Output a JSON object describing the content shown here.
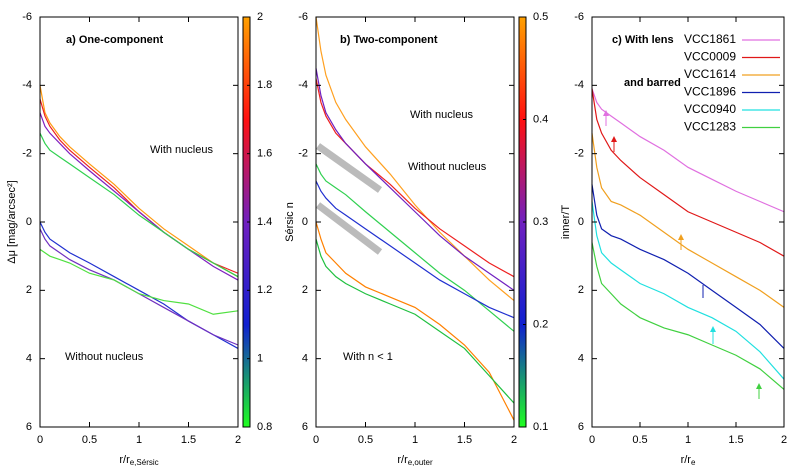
{
  "chart_data": [
    {
      "type": "line",
      "y_label": "Δμ [mag/arcsec²]",
      "x_label": {
        "text": "r/r",
        "sub": "e,Sérsic"
      },
      "annotations": [
        {
          "text": "a) One-component",
          "bold": true
        },
        {
          "text": "With nucleus",
          "bold": false
        },
        {
          "text": "Without nucleus",
          "bold": false
        }
      ],
      "x": [
        0,
        0.05,
        0.1,
        0.2,
        0.3,
        0.5,
        0.75,
        1,
        1.25,
        1.5,
        1.75,
        2
      ],
      "series": [
        {
          "color": "#ff9a10",
          "values": [
            -4.0,
            -3.2,
            -2.9,
            -2.5,
            -2.2,
            -1.7,
            -1.1,
            -0.4,
            0.2,
            0.7,
            1.2,
            1.6
          ]
        },
        {
          "color": "#ee2020",
          "values": [
            -3.6,
            -3.1,
            -2.8,
            -2.4,
            -2.1,
            -1.6,
            -1.0,
            -0.3,
            0.3,
            0.8,
            1.2,
            1.5
          ]
        },
        {
          "color": "#8020c0",
          "values": [
            -3.2,
            -2.8,
            -2.6,
            -2.3,
            -2.0,
            -1.5,
            -0.9,
            -0.3,
            0.3,
            0.8,
            1.3,
            1.7
          ]
        },
        {
          "color": "#30d050",
          "values": [
            -2.6,
            -2.3,
            -2.1,
            -1.9,
            -1.7,
            -1.3,
            -0.8,
            -0.2,
            0.3,
            0.8,
            1.2,
            1.6
          ]
        },
        {
          "color": "#2030d0",
          "values": [
            0.0,
            0.3,
            0.5,
            0.7,
            0.9,
            1.2,
            1.6,
            2.0,
            2.4,
            2.9,
            3.3,
            3.7
          ]
        },
        {
          "color": "#7030c0",
          "values": [
            0.2,
            0.5,
            0.7,
            0.9,
            1.1,
            1.4,
            1.7,
            2.1,
            2.5,
            2.9,
            3.3,
            3.6
          ]
        },
        {
          "color": "#50e040",
          "values": [
            0.8,
            0.9,
            1.0,
            1.1,
            1.2,
            1.5,
            1.7,
            2.1,
            2.3,
            2.4,
            2.7,
            2.6
          ]
        }
      ],
      "xlim": [
        0,
        2
      ],
      "xticks": [
        0,
        0.5,
        1,
        1.5,
        2
      ],
      "ylim": [
        -6,
        6
      ],
      "yticks": [
        -6,
        -4,
        -2,
        0,
        2,
        4,
        6
      ],
      "y_inverted": true,
      "colorbar": {
        "label": "Sérsic n",
        "lim": [
          0.8,
          2
        ],
        "ticks": [
          0.8,
          1,
          1.2,
          1.4,
          1.6,
          1.8,
          2
        ],
        "colors": [
          "#20ff20",
          "#1020d0",
          "#7020c0",
          "#ff1010",
          "#ffa000"
        ]
      }
    },
    {
      "type": "line",
      "x_label": {
        "text": "r/r",
        "sub": "e,outer"
      },
      "annotations": [
        {
          "text": "b) Two-component",
          "bold": true
        },
        {
          "text": "With nucleus",
          "bold": false
        },
        {
          "text": "Without nucleus",
          "bold": false
        },
        {
          "text": "With n < 1",
          "bold": false
        }
      ],
      "x": [
        0,
        0.05,
        0.1,
        0.2,
        0.3,
        0.5,
        0.75,
        1,
        1.25,
        1.5,
        1.75,
        2
      ],
      "series": [
        {
          "color": "#ffa020",
          "values": [
            -6.0,
            -5.0,
            -4.3,
            -3.5,
            -3.0,
            -2.2,
            -1.4,
            -0.5,
            0.3,
            1.0,
            1.7,
            2.3
          ]
        },
        {
          "color": "#ee2020",
          "values": [
            -4.2,
            -3.5,
            -3.1,
            -2.6,
            -2.3,
            -1.7,
            -1.1,
            -0.4,
            0.2,
            0.7,
            1.2,
            1.6
          ]
        },
        {
          "color": "#7020c0",
          "values": [
            -4.5,
            -3.7,
            -3.2,
            -2.7,
            -2.3,
            -1.7,
            -1.0,
            -0.3,
            0.4,
            1.0,
            1.5,
            2.0
          ]
        },
        {
          "color": "#30d050",
          "values": [
            -1.7,
            -1.4,
            -1.2,
            -1.0,
            -0.8,
            -0.3,
            0.3,
            0.9,
            1.5,
            2.0,
            2.6,
            3.2
          ]
        },
        {
          "color": "#2030d0",
          "values": [
            -1.2,
            -0.9,
            -0.7,
            -0.4,
            -0.2,
            0.2,
            0.7,
            1.2,
            1.7,
            2.1,
            2.5,
            2.8
          ]
        },
        {
          "color": "#ff8000",
          "values": [
            0.0,
            0.5,
            0.9,
            1.2,
            1.5,
            1.9,
            2.2,
            2.5,
            3.0,
            3.6,
            4.4,
            5.8
          ]
        },
        {
          "color": "#20c040",
          "values": [
            0.5,
            1.0,
            1.3,
            1.6,
            1.8,
            2.1,
            2.4,
            2.7,
            3.2,
            3.7,
            4.5,
            5.3
          ]
        }
      ],
      "xlim": [
        0,
        2
      ],
      "xticks": [
        0,
        0.5,
        1,
        1.5,
        2
      ],
      "ylim": [
        -6,
        6
      ],
      "yticks": [
        -6,
        -4,
        -2,
        0,
        2,
        4,
        6
      ],
      "y_inverted": true,
      "colorbar": {
        "label": "inner/T",
        "lim": [
          0.1,
          0.5
        ],
        "ticks": [
          0.1,
          0.2,
          0.3,
          0.4,
          0.5
        ],
        "colors": [
          "#20ff20",
          "#1020d0",
          "#7020c0",
          "#ff1010",
          "#ffa000"
        ]
      }
    },
    {
      "type": "line",
      "x_label": {
        "text": "r/r",
        "sub": "e"
      },
      "annotations": [
        {
          "text": "c) With lens",
          "bold": true
        },
        {
          "text": "and barred",
          "bold": true
        }
      ],
      "x": [
        0,
        0.05,
        0.1,
        0.2,
        0.3,
        0.5,
        0.75,
        1,
        1.25,
        1.5,
        1.75,
        2
      ],
      "series": [
        {
          "name": "VCC1861",
          "color": "#e070e0",
          "values": [
            -3.9,
            -3.5,
            -3.3,
            -3.1,
            -2.9,
            -2.5,
            -2.1,
            -1.6,
            -1.25,
            -0.9,
            -0.6,
            -0.3
          ]
        },
        {
          "name": "VCC0009",
          "color": "#e01818",
          "values": [
            -3.9,
            -3.0,
            -2.6,
            -2.1,
            -1.8,
            -1.3,
            -0.8,
            -0.3,
            0.0,
            0.3,
            0.6,
            1.0
          ]
        },
        {
          "name": "VCC1614",
          "color": "#f0a020",
          "values": [
            -2.6,
            -1.6,
            -1.0,
            -0.6,
            -0.5,
            -0.2,
            0.3,
            0.8,
            1.2,
            1.6,
            2.0,
            2.5
          ]
        },
        {
          "name": "VCC1896",
          "color": "#1020b0",
          "values": [
            -1.1,
            -0.2,
            0.2,
            0.4,
            0.5,
            0.8,
            1.1,
            1.5,
            2.0,
            2.5,
            3.0,
            3.7
          ]
        },
        {
          "name": "VCC0940",
          "color": "#20e0e0",
          "values": [
            -0.6,
            0.4,
            0.9,
            1.2,
            1.4,
            1.8,
            2.1,
            2.5,
            2.8,
            3.2,
            3.8,
            4.6
          ]
        },
        {
          "name": "VCC1283",
          "color": "#40d040",
          "values": [
            0.6,
            1.3,
            1.8,
            2.1,
            2.4,
            2.8,
            3.1,
            3.3,
            3.6,
            3.9,
            4.3,
            4.9
          ]
        }
      ],
      "xlim": [
        0,
        2
      ],
      "xticks": [
        0,
        0.5,
        1,
        1.5,
        2
      ],
      "ylim": [
        -6,
        6
      ],
      "yticks": [
        -6,
        -4,
        -2,
        0,
        2,
        4,
        6
      ],
      "y_inverted": true,
      "legend": "upper right"
    }
  ]
}
